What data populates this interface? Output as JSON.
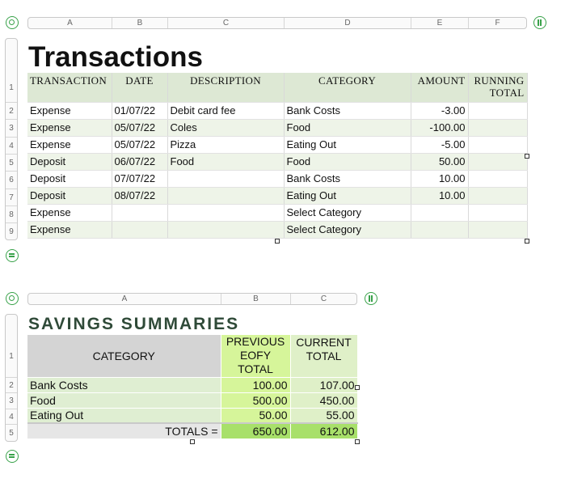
{
  "sheet1": {
    "columns": [
      "A",
      "B",
      "C",
      "D",
      "E",
      "F"
    ],
    "rows": [
      "1",
      "2",
      "3",
      "4",
      "5",
      "6",
      "7",
      "8",
      "9"
    ],
    "title": "Transactions",
    "headers": [
      "TRANSACTION",
      "DATE",
      "DESCRIPTION",
      "CATEGORY",
      "AMOUNT",
      "RUNNING",
      "TOTAL"
    ],
    "data": [
      [
        "Expense",
        "01/07/22",
        "Debit card fee",
        "Bank Costs",
        "-3.00",
        ""
      ],
      [
        "Expense",
        "05/07/22",
        "Coles",
        "Food",
        "-100.00",
        ""
      ],
      [
        "Expense",
        "05/07/22",
        "Pizza",
        "Eating Out",
        "-5.00",
        ""
      ],
      [
        "Deposit",
        "06/07/22",
        "Food",
        "Food",
        "50.00",
        ""
      ],
      [
        "Deposit",
        "07/07/22",
        "",
        "Bank Costs",
        "10.00",
        ""
      ],
      [
        "Deposit",
        "08/07/22",
        "",
        "Eating Out",
        "10.00",
        ""
      ],
      [
        "Expense",
        "",
        "",
        "Select Category",
        "",
        ""
      ],
      [
        "Expense",
        "",
        "",
        "Select Category",
        "",
        ""
      ]
    ]
  },
  "sheet2": {
    "columns": [
      "A",
      "B",
      "C"
    ],
    "rows": [
      "1",
      "2",
      "3",
      "4",
      "5"
    ],
    "title": "SAVINGS SUMMARIES",
    "headers": {
      "category": "CATEGORY",
      "previous": [
        "PREVIOUS",
        "EOFY",
        "TOTAL"
      ],
      "current": [
        "CURRENT",
        "TOTAL"
      ]
    },
    "data": [
      [
        "Bank Costs",
        "100.00",
        "107.00"
      ],
      [
        "Food",
        "500.00",
        "450.00"
      ],
      [
        "Eating Out",
        "50.00",
        "55.00"
      ]
    ],
    "totals": {
      "label": "TOTALS =",
      "previous": "650.00",
      "current": "612.00"
    }
  },
  "colors": {
    "accent": "#39a24a",
    "header_green": "#dde8d4",
    "row_alt": "#eef4e8",
    "lime": "#d6f59a",
    "lime_dark": "#a8e06a",
    "title2": "#2f4a38"
  }
}
